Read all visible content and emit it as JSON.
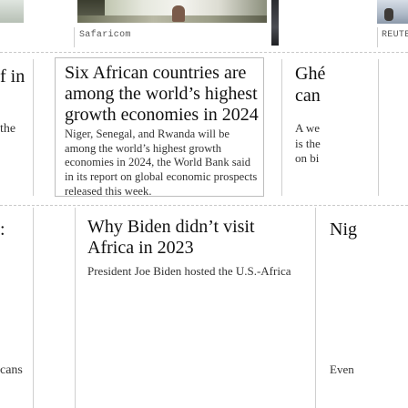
{
  "sources": {
    "top_center": "Safaricom",
    "top_right": "REUTE"
  },
  "left_column": {
    "fragments": [
      "f in",
      "the",
      ":",
      "cans"
    ]
  },
  "featured_story": {
    "title": "Six African countries are among the world’s highest growth economies in 2024",
    "summary": "Niger, Senegal, and Rwanda will be among the world’s highest growth economies in 2024, the World Bank said in its report on global economic prospects released this week."
  },
  "right_column": {
    "title_lines": [
      "Ghé",
      "can"
    ],
    "summary_lines": [
      "A we",
      "is the",
      "on bi"
    ],
    "next_title": "Nig",
    "next_summary": "Even"
  },
  "second_story": {
    "title": "Why Biden didn’t visit Africa in 2023",
    "summary": "President Joe Biden hosted the U.S.-Africa"
  }
}
